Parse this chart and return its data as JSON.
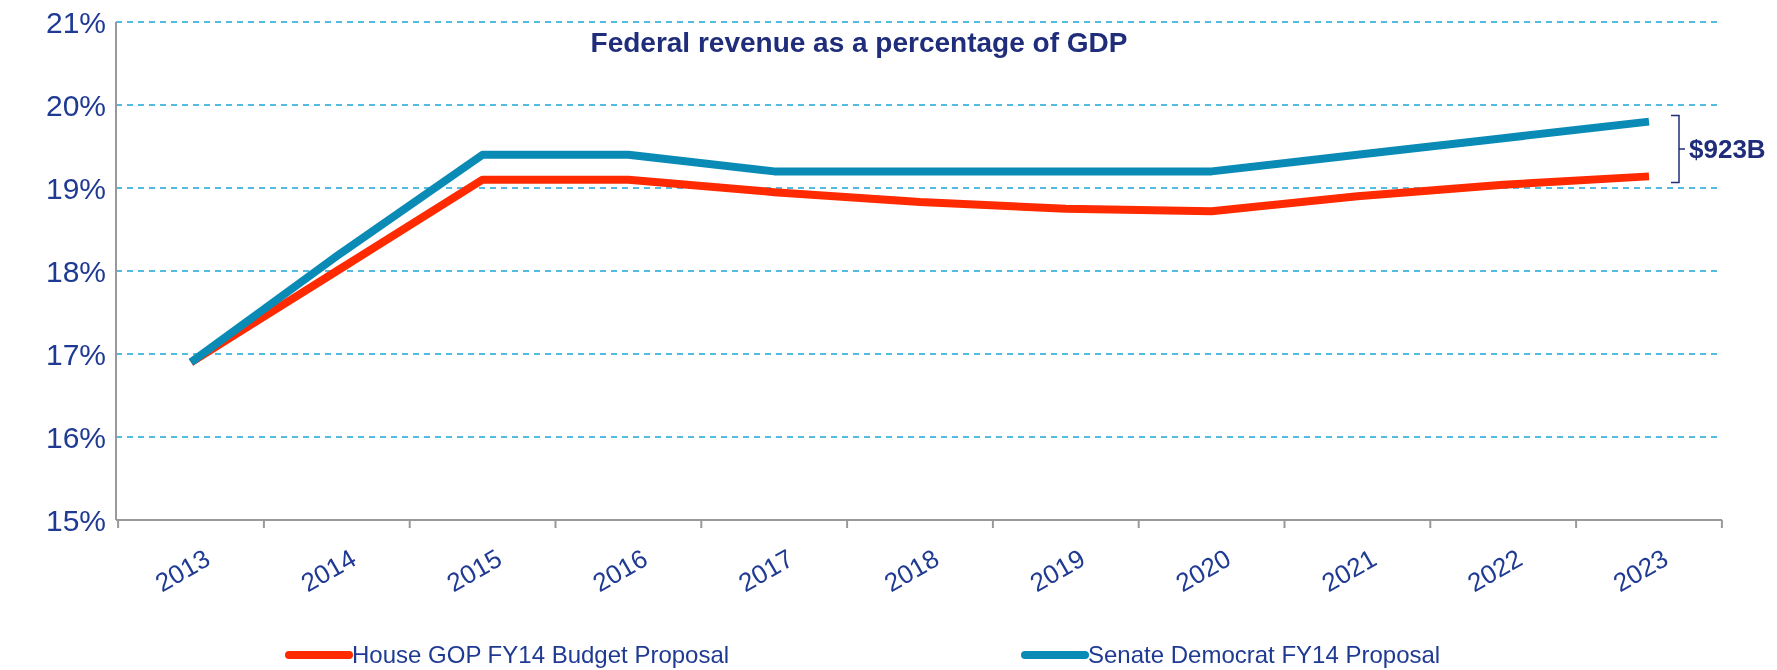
{
  "chart_data": {
    "type": "line",
    "title": "Federal revenue as a percentage of GDP",
    "categories": [
      "2013",
      "2014",
      "2015",
      "2016",
      "2017",
      "2018",
      "2019",
      "2020",
      "2021",
      "2022",
      "2023"
    ],
    "series": [
      {
        "name": "House GOP FY14 Budget Proposal",
        "color": "#ff2a00",
        "values": [
          16.9,
          18.0,
          19.1,
          19.1,
          18.95,
          18.83,
          18.75,
          18.72,
          18.9,
          19.04,
          19.14
        ]
      },
      {
        "name": "Senate Democrat FY14 Proposal",
        "color": "#0a8bb5",
        "values": [
          16.9,
          18.18,
          19.4,
          19.4,
          19.2,
          19.2,
          19.2,
          19.2,
          19.4,
          19.6,
          19.8
        ]
      }
    ],
    "ylim": [
      15,
      21
    ],
    "yticks": [
      {
        "value": 15,
        "label": "15%"
      },
      {
        "value": 16,
        "label": "16%"
      },
      {
        "value": 17,
        "label": "17%"
      },
      {
        "value": 18,
        "label": "18%"
      },
      {
        "value": 19,
        "label": "19%"
      },
      {
        "value": 20,
        "label": "20%"
      },
      {
        "value": 21,
        "label": "21%"
      }
    ],
    "grid": "y",
    "line_style": "solid",
    "legend": "bottom",
    "annotations": [
      "$923B"
    ]
  }
}
